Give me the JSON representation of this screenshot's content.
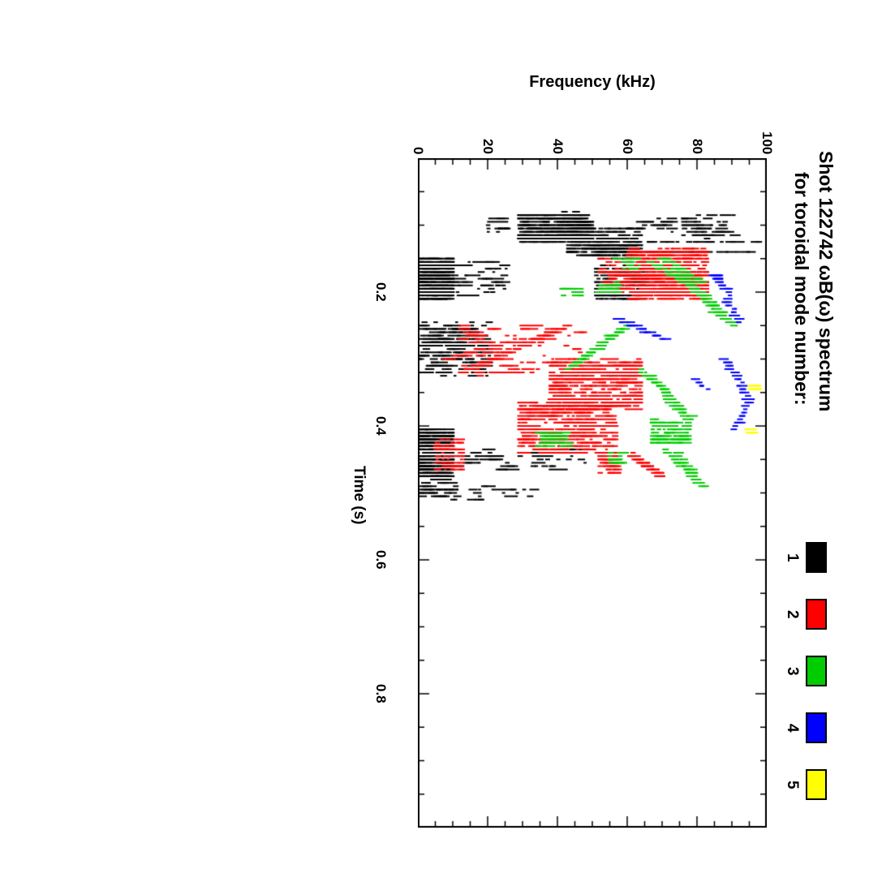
{
  "chart_data": {
    "type": "scatter",
    "title_line1": "Shot 122742 ωB(ω) spectrum",
    "title_line2": "for toroidal mode number:",
    "xlabel": "Time (s)",
    "ylabel": "Frequency (kHz)",
    "orientation": "rotated-90deg-clockwise (time increases downward, frequency increases rightward)",
    "colors": {
      "axis": "#000000",
      "background": "#ffffff"
    },
    "time_axis": {
      "min": 0.0,
      "max": 1.0,
      "major_ticks": [
        0.2,
        0.4,
        0.6,
        0.8
      ],
      "major_tick_labels": [
        "0.2",
        "0.4",
        "0.6",
        "0.8"
      ],
      "minor_step": 0.05
    },
    "freq_axis": {
      "min": 0,
      "max": 100,
      "major_ticks": [
        0,
        20,
        40,
        60,
        80,
        100
      ],
      "major_tick_labels": [
        "0",
        "20",
        "40",
        "60",
        "80",
        "100"
      ],
      "minor_step": 5
    },
    "legend_position": "right",
    "series": [
      {
        "name": "n=1",
        "label": "1",
        "color": "#000000",
        "clusters": [
          [
            0.082,
            0.125,
            29,
            50,
            300
          ],
          [
            0.105,
            0.145,
            43,
            64,
            150
          ],
          [
            0.085,
            0.118,
            76,
            92,
            45
          ],
          [
            0.09,
            0.112,
            63,
            74,
            18
          ],
          [
            0.128,
            0.15,
            52,
            63,
            40
          ],
          [
            0.149,
            0.212,
            0,
            10,
            280
          ],
          [
            0.152,
            0.205,
            10,
            26,
            45
          ],
          [
            0.162,
            0.212,
            51,
            66,
            130
          ],
          [
            0.246,
            0.325,
            0,
            21,
            160
          ],
          [
            0.404,
            0.478,
            0,
            10,
            300
          ],
          [
            0.433,
            0.465,
            10,
            48,
            55
          ],
          [
            0.485,
            0.51,
            0,
            12,
            35
          ],
          [
            0.49,
            0.51,
            14,
            35,
            18
          ],
          [
            0.09,
            0.115,
            20,
            28,
            12
          ]
        ],
        "chirps": [
          [
            0.127,
            52,
            0.127,
            99,
            22
          ],
          [
            0.142,
            66,
            0.142,
            96,
            16
          ],
          [
            0.25,
            2,
            0.32,
            19,
            25
          ],
          [
            0.32,
            2,
            0.255,
            17,
            25
          ],
          [
            0.1,
            30,
            0.135,
            55,
            30
          ]
        ]
      },
      {
        "name": "n=2",
        "label": "2",
        "color": "#ff0000",
        "clusters": [
          [
            0.135,
            0.21,
            60,
            83,
            320
          ],
          [
            0.148,
            0.2,
            52,
            61,
            50
          ],
          [
            0.25,
            0.325,
            12,
            48,
            70
          ],
          [
            0.3,
            0.375,
            38,
            64,
            300
          ],
          [
            0.36,
            0.442,
            29,
            57,
            300
          ],
          [
            0.42,
            0.468,
            5,
            13,
            50
          ],
          [
            0.44,
            0.47,
            52,
            58,
            30
          ]
        ],
        "chirps": [
          [
            0.32,
            12,
            0.255,
            40,
            40
          ],
          [
            0.315,
            16,
            0.25,
            44,
            30
          ],
          [
            0.3,
            8,
            0.27,
            30,
            20
          ],
          [
            0.442,
            61,
            0.475,
            70,
            35
          ],
          [
            0.135,
            62,
            0.21,
            80,
            40
          ],
          [
            0.16,
            64,
            0.205,
            74,
            30
          ]
        ]
      },
      {
        "name": "n=3",
        "label": "3",
        "color": "#00cc00",
        "clusters": [
          [
            0.185,
            0.2,
            51,
            58,
            22
          ],
          [
            0.39,
            0.425,
            67,
            78,
            80
          ],
          [
            0.41,
            0.432,
            34,
            44,
            28
          ],
          [
            0.44,
            0.458,
            55,
            60,
            16
          ],
          [
            0.15,
            0.168,
            56,
            64,
            14
          ],
          [
            0.19,
            0.205,
            41,
            47,
            12
          ]
        ],
        "chirps": [
          [
            0.148,
            70,
            0.186,
            82,
            28
          ],
          [
            0.156,
            67,
            0.19,
            78,
            20
          ],
          [
            0.163,
            74,
            0.25,
            91,
            36
          ],
          [
            0.18,
            76,
            0.24,
            88,
            22
          ],
          [
            0.248,
            61,
            0.315,
            43,
            30
          ],
          [
            0.255,
            58,
            0.31,
            45,
            18
          ],
          [
            0.315,
            64,
            0.39,
            79,
            30
          ],
          [
            0.322,
            66,
            0.385,
            76,
            20
          ],
          [
            0.435,
            71,
            0.492,
            82,
            26
          ],
          [
            0.44,
            74,
            0.48,
            80,
            14
          ]
        ]
      },
      {
        "name": "n=4",
        "label": "4",
        "color": "#0000ff",
        "clusters": [
          [
            0.17,
            0.18,
            84,
            87,
            6
          ]
        ],
        "chirps": [
          [
            0.175,
            85,
            0.205,
            90,
            14
          ],
          [
            0.21,
            88,
            0.247,
            93,
            14
          ],
          [
            0.238,
            57,
            0.272,
            71,
            22
          ],
          [
            0.3,
            88,
            0.358,
            95,
            22
          ],
          [
            0.358,
            95,
            0.405,
            91,
            16
          ],
          [
            0.33,
            79,
            0.345,
            83,
            8
          ]
        ]
      },
      {
        "name": "n=5",
        "label": "5",
        "color": "#ffff00",
        "clusters": [
          [
            0.338,
            0.35,
            95,
            98,
            7
          ],
          [
            0.4,
            0.412,
            94,
            97,
            7
          ]
        ],
        "chirps": []
      }
    ]
  }
}
